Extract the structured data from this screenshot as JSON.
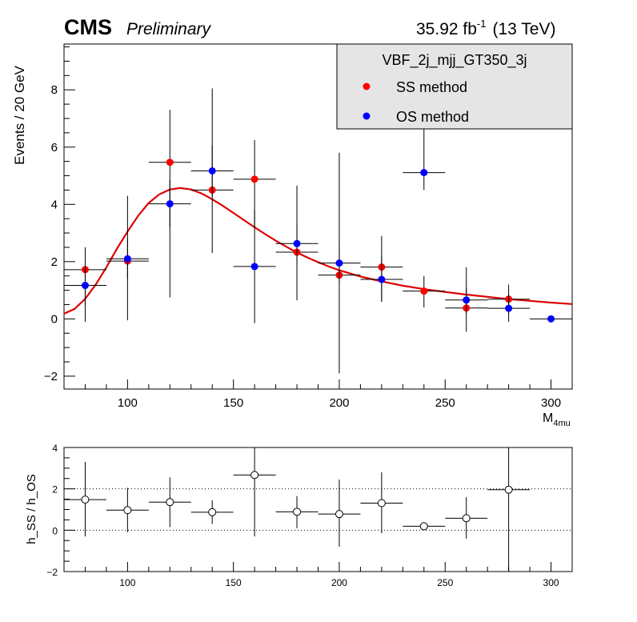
{
  "header": {
    "experiment": "CMS",
    "status": "Preliminary",
    "lumi": "35.92 fb",
    "lumi_exp": "-1",
    "energy": "(13 TeV)"
  },
  "colors": {
    "ss": "#ff0000",
    "os": "#0000ff",
    "fit": "#dd0000",
    "legend_bg": "#e5e5e5"
  },
  "chart_data": [
    {
      "type": "scatter",
      "xlabel": "M",
      "xlabel_sub": "4mu",
      "ylabel": "Events / 20 GeV",
      "xlim": [
        70,
        310
      ],
      "ylim": [
        -2.45,
        9.6
      ],
      "x_ticks": [
        100,
        150,
        200,
        250,
        300
      ],
      "y_ticks": [
        -2,
        0,
        2,
        4,
        6,
        8
      ],
      "grid": false,
      "legend": {
        "placement": "top-right",
        "title": "VBF_2j_mjj_GT350_3j",
        "entries": [
          "SS method",
          "OS method"
        ]
      },
      "series": [
        {
          "name": "SS method",
          "color": "#ff0000",
          "points": [
            {
              "x": 80,
              "y": 1.72,
              "xerr": 10,
              "ylo": -0.1,
              "yhi": 2.5
            },
            {
              "x": 100,
              "y": 2.02,
              "xerr": 10,
              "ylo": -0.05,
              "yhi": 4.3
            },
            {
              "x": 120,
              "y": 5.47,
              "xerr": 10,
              "ylo": 0.75,
              "yhi": 7.3
            },
            {
              "x": 140,
              "y": 4.5,
              "xerr": 10,
              "ylo": 2.3,
              "yhi": 8.05
            },
            {
              "x": 160,
              "y": 4.88,
              "xerr": 10,
              "ylo": 3.2,
              "yhi": 6.25
            },
            {
              "x": 180,
              "y": 2.33,
              "xerr": 10,
              "ylo": 0.65,
              "yhi": 4.65
            },
            {
              "x": 200,
              "y": 1.53,
              "xerr": 10,
              "ylo": -1.9,
              "yhi": 5.8
            },
            {
              "x": 220,
              "y": 1.81,
              "xerr": 10,
              "ylo": 0.6,
              "yhi": 2.9
            },
            {
              "x": 240,
              "y": 0.97,
              "xerr": 10,
              "ylo": 0.4,
              "yhi": 1.5
            },
            {
              "x": 260,
              "y": 0.38,
              "xerr": 10,
              "ylo": -0.45,
              "yhi": 1.8
            },
            {
              "x": 280,
              "y": 0.69,
              "xerr": 10,
              "ylo": 0.2,
              "yhi": 1.2
            }
          ]
        },
        {
          "name": "OS method",
          "color": "#0000ff",
          "points": [
            {
              "x": 80,
              "y": 1.17,
              "xerr": 10,
              "ylo": 0.45,
              "yhi": 1.9
            },
            {
              "x": 100,
              "y": 2.1,
              "xerr": 10,
              "ylo": 1.4,
              "yhi": 2.8
            },
            {
              "x": 120,
              "y": 4.02,
              "xerr": 10,
              "ylo": 3.2,
              "yhi": 4.85
            },
            {
              "x": 140,
              "y": 5.17,
              "xerr": 10,
              "ylo": 4.3,
              "yhi": 6.05
            },
            {
              "x": 160,
              "y": 1.83,
              "xerr": 10,
              "ylo": -0.15,
              "yhi": 3.8
            },
            {
              "x": 180,
              "y": 2.63,
              "xerr": 10,
              "ylo": 1.9,
              "yhi": 3.35
            },
            {
              "x": 200,
              "y": 1.95,
              "xerr": 10,
              "ylo": 1.2,
              "yhi": 2.7
            },
            {
              "x": 220,
              "y": 1.38,
              "xerr": 10,
              "ylo": 0.6,
              "yhi": 2.2
            },
            {
              "x": 240,
              "y": 5.11,
              "xerr": 10,
              "ylo": 4.5,
              "yhi": 6.7
            },
            {
              "x": 260,
              "y": 0.66,
              "xerr": 10,
              "ylo": 0.2,
              "yhi": 1.1
            },
            {
              "x": 280,
              "y": 0.37,
              "xerr": 10,
              "ylo": -0.1,
              "yhi": 0.85
            },
            {
              "x": 300,
              "y": 0.0,
              "xerr": 10,
              "ylo": 0.0,
              "yhi": 0.0
            }
          ]
        }
      ],
      "fit_curve": {
        "color": "#dd0000",
        "points": [
          [
            70,
            0.18
          ],
          [
            75,
            0.35
          ],
          [
            80,
            0.7
          ],
          [
            85,
            1.2
          ],
          [
            90,
            1.8
          ],
          [
            95,
            2.45
          ],
          [
            100,
            3.05
          ],
          [
            105,
            3.6
          ],
          [
            110,
            4.05
          ],
          [
            115,
            4.35
          ],
          [
            120,
            4.52
          ],
          [
            125,
            4.57
          ],
          [
            130,
            4.52
          ],
          [
            135,
            4.38
          ],
          [
            140,
            4.18
          ],
          [
            145,
            3.95
          ],
          [
            150,
            3.7
          ],
          [
            155,
            3.45
          ],
          [
            160,
            3.2
          ],
          [
            165,
            2.96
          ],
          [
            170,
            2.73
          ],
          [
            175,
            2.52
          ],
          [
            180,
            2.32
          ],
          [
            185,
            2.14
          ],
          [
            190,
            1.98
          ],
          [
            195,
            1.83
          ],
          [
            200,
            1.7
          ],
          [
            210,
            1.48
          ],
          [
            220,
            1.31
          ],
          [
            230,
            1.16
          ],
          [
            240,
            1.04
          ],
          [
            250,
            0.94
          ],
          [
            260,
            0.85
          ],
          [
            270,
            0.77
          ],
          [
            280,
            0.69
          ],
          [
            290,
            0.63
          ],
          [
            300,
            0.57
          ],
          [
            310,
            0.52
          ]
        ]
      }
    },
    {
      "type": "scatter",
      "ylabel": "h_SS / h_OS",
      "xlim": [
        70,
        310
      ],
      "ylim": [
        -2,
        4
      ],
      "x_ticks": [
        100,
        150,
        200,
        250,
        300
      ],
      "y_ticks": [
        -2,
        0,
        2,
        4
      ],
      "reference_lines": [
        0,
        2
      ],
      "series": [
        {
          "name": "h_SS / h_OS",
          "points": [
            {
              "x": 80,
              "y": 1.48,
              "xerr": 10,
              "ylo": -0.3,
              "yhi": 3.3
            },
            {
              "x": 100,
              "y": 0.97,
              "xerr": 10,
              "ylo": -0.1,
              "yhi": 2.05
            },
            {
              "x": 120,
              "y": 1.36,
              "xerr": 10,
              "ylo": 0.15,
              "yhi": 2.55
            },
            {
              "x": 140,
              "y": 0.87,
              "xerr": 10,
              "ylo": 0.3,
              "yhi": 1.45
            },
            {
              "x": 160,
              "y": 2.67,
              "xerr": 10,
              "ylo": -0.3,
              "yhi": 4.0
            },
            {
              "x": 180,
              "y": 0.89,
              "xerr": 10,
              "ylo": 0.1,
              "yhi": 1.65
            },
            {
              "x": 200,
              "y": 0.78,
              "xerr": 10,
              "ylo": -0.8,
              "yhi": 2.45
            },
            {
              "x": 220,
              "y": 1.31,
              "xerr": 10,
              "ylo": -0.15,
              "yhi": 2.8
            },
            {
              "x": 240,
              "y": 0.19,
              "xerr": 10,
              "ylo": 0.05,
              "yhi": 0.33
            },
            {
              "x": 260,
              "y": 0.58,
              "xerr": 10,
              "ylo": -0.4,
              "yhi": 1.6
            },
            {
              "x": 280,
              "y": 1.96,
              "xerr": 10,
              "ylo": -2.0,
              "yhi": 4.0
            }
          ]
        }
      ]
    }
  ]
}
